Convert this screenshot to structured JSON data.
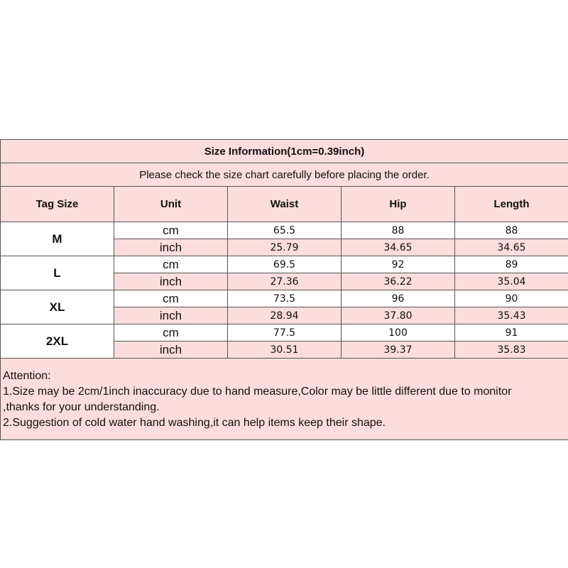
{
  "title": "Size Information(1cm=0.39inch)",
  "subtitle": "Please check the size chart carefully before placing the order.",
  "headers": [
    "Tag Size",
    "Unit",
    "Waist",
    "Hip",
    "Length"
  ],
  "rows": [
    {
      "size": "M",
      "cm": [
        "65.5",
        "88",
        "88"
      ],
      "inch": [
        "25.79",
        "34.65",
        "34.65"
      ]
    },
    {
      "size": "L",
      "cm": [
        "69.5",
        "92",
        "89"
      ],
      "inch": [
        "27.36",
        "36.22",
        "35.04"
      ]
    },
    {
      "size": "XL",
      "cm": [
        "73.5",
        "96",
        "90"
      ],
      "inch": [
        "28.94",
        "37.80",
        "35.43"
      ]
    },
    {
      "size": "2XL",
      "cm": [
        "77.5",
        "100",
        "91"
      ],
      "inch": [
        "30.51",
        "39.37",
        "35.83"
      ]
    }
  ],
  "units": {
    "cm": "cm",
    "inch": "inch"
  },
  "notes": [
    "Attention:",
    "1.Size may be 2cm/1inch inaccuracy due to hand measure,Color may be little different due to monitor",
    ",thanks for your understanding.",
    "2.Suggestion of cold water hand washing,it can help items keep their shape."
  ],
  "colors": {
    "pink": "#fcdcdc",
    "border": "#555555"
  }
}
